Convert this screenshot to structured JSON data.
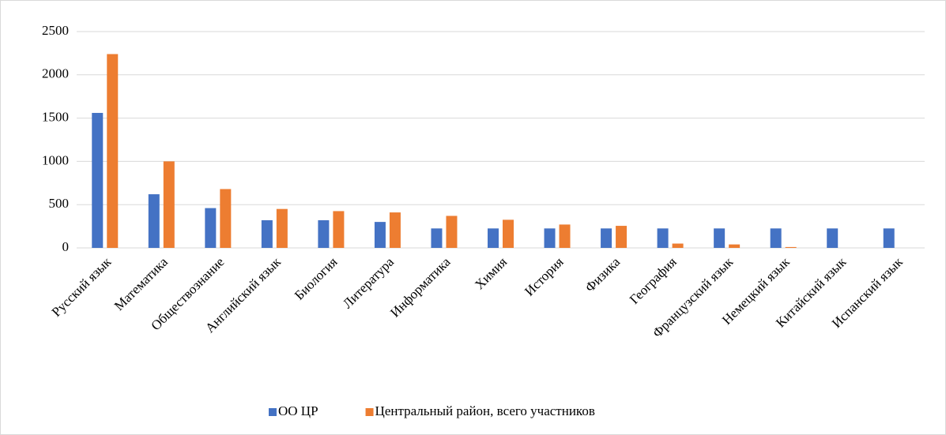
{
  "chart_data": {
    "type": "bar",
    "categories": [
      "Русский язык",
      "Математика",
      "Обществознание",
      "Английский язык",
      "Биология",
      "Литература",
      "Информатика",
      "Химия",
      "История",
      "Физика",
      "География",
      "Французский язык",
      "Немецкий язык",
      "Китайский язык",
      "Испанский язык"
    ],
    "series": [
      {
        "name": "ОО ЦР",
        "color": "#4472c4",
        "values": [
          1560,
          620,
          460,
          320,
          320,
          300,
          225,
          225,
          225,
          225,
          225,
          225,
          225,
          225,
          225
        ]
      },
      {
        "name": "Центральный район, всего участников",
        "color": "#ed7d31",
        "values": [
          2240,
          1000,
          680,
          450,
          425,
          410,
          370,
          325,
          270,
          255,
          50,
          40,
          10,
          0,
          0
        ]
      }
    ],
    "ylim": [
      0,
      2500
    ],
    "yticks": [
      0,
      500,
      1000,
      1500,
      2000,
      2500
    ],
    "grid": true,
    "legend": "bottom"
  }
}
